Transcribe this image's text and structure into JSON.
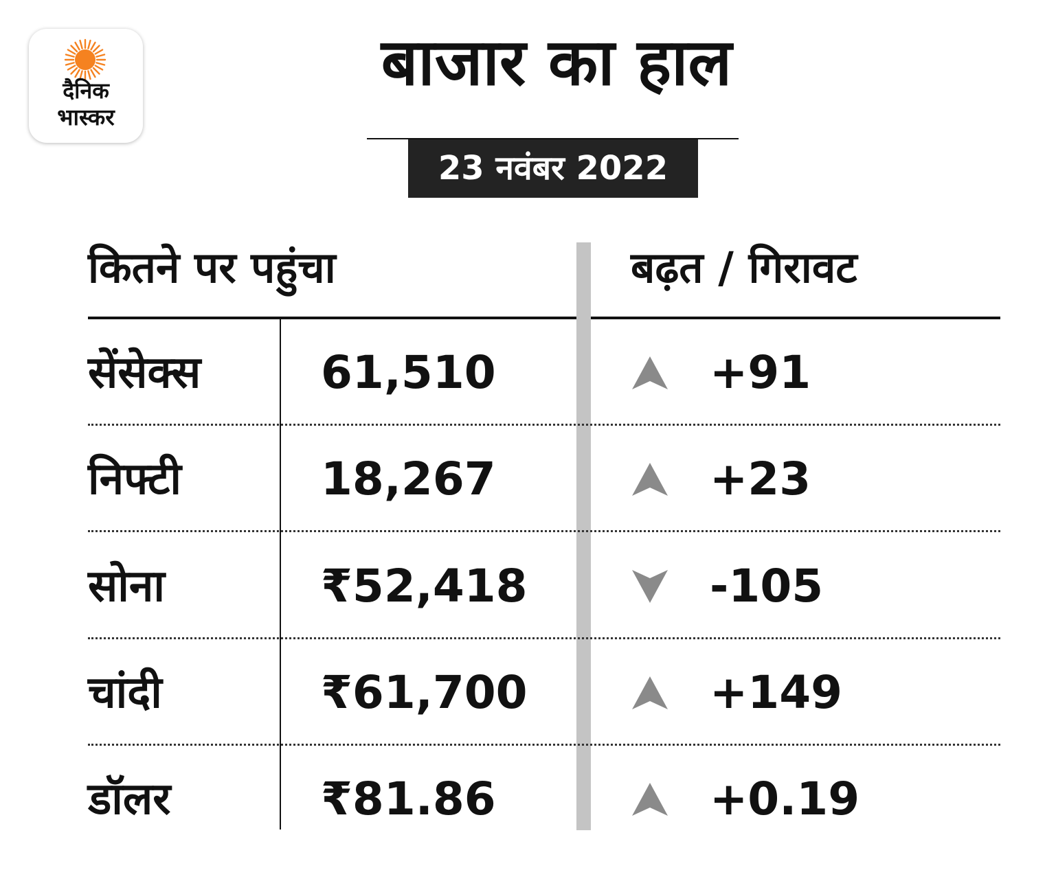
{
  "logo": {
    "line1": "दैनिक",
    "line2": "भास्कर",
    "sun_color": "#f58220",
    "icon": "sun-icon"
  },
  "title": "बाजार का हाल",
  "date": "23 नवंबर 2022",
  "columns": {
    "left": "कितने पर पहुंचा",
    "right": "बढ़त / गिरावट"
  },
  "colors": {
    "arrow": "#8a8a8a",
    "divider_bar": "#c4c4c4",
    "date_bg": "#232323"
  },
  "rows": [
    {
      "name": "सेंसेक्स",
      "value": "61,510",
      "direction": "up",
      "change": "+91"
    },
    {
      "name": "निफ्टी",
      "value": "18,267",
      "direction": "up",
      "change": "+23"
    },
    {
      "name": "सोना",
      "value": "₹52,418",
      "direction": "down",
      "change": "-105"
    },
    {
      "name": "चांदी",
      "value": "₹61,700",
      "direction": "up",
      "change": "+149"
    },
    {
      "name": "डॉलर",
      "value": "₹81.86",
      "direction": "up",
      "change": "+0.19"
    }
  ]
}
